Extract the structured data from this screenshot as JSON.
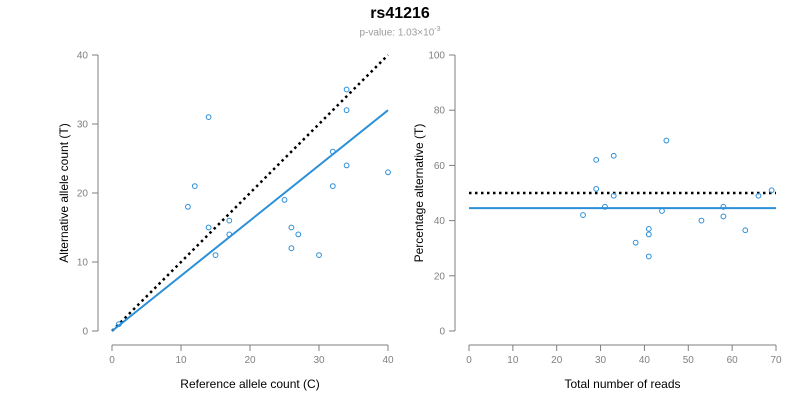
{
  "title": "rs41216",
  "subtitle": {
    "prefix": "p-value: 1.03×10",
    "exponent": "-3"
  },
  "colors": {
    "points": "#2b8fd8",
    "fit_line": "#2b8fd8",
    "reference_line": "#000000",
    "axis": "#7f7f7f"
  },
  "chart_data": [
    {
      "type": "scatter",
      "xlabel": "Reference allele count (C)",
      "ylabel": "Alternative allele count (T)",
      "xlim": [
        0,
        40
      ],
      "ylim": [
        0,
        40
      ],
      "xticks": [
        0,
        10,
        20,
        30,
        40
      ],
      "yticks": [
        0,
        10,
        20,
        30,
        40
      ],
      "grid": false,
      "points": [
        {
          "x": 1,
          "y": 1
        },
        {
          "x": 11,
          "y": 18
        },
        {
          "x": 12,
          "y": 21
        },
        {
          "x": 14,
          "y": 31
        },
        {
          "x": 14,
          "y": 15
        },
        {
          "x": 15,
          "y": 11
        },
        {
          "x": 17,
          "y": 16
        },
        {
          "x": 17,
          "y": 14
        },
        {
          "x": 25,
          "y": 19
        },
        {
          "x": 26,
          "y": 15
        },
        {
          "x": 26,
          "y": 12
        },
        {
          "x": 27,
          "y": 14
        },
        {
          "x": 30,
          "y": 11
        },
        {
          "x": 32,
          "y": 21
        },
        {
          "x": 32,
          "y": 26
        },
        {
          "x": 34,
          "y": 35
        },
        {
          "x": 34,
          "y": 32
        },
        {
          "x": 34,
          "y": 24
        },
        {
          "x": 40,
          "y": 23
        }
      ],
      "fit_line": {
        "x": [
          0,
          40
        ],
        "y": [
          0,
          32
        ],
        "style": "solid"
      },
      "reference_line": {
        "x": [
          0,
          40
        ],
        "y": [
          0,
          40
        ],
        "style": "dotted"
      }
    },
    {
      "type": "scatter",
      "xlabel": "Total number of reads",
      "ylabel": "Percentage alternative (T)",
      "xlim": [
        0,
        70
      ],
      "ylim": [
        0,
        100
      ],
      "xticks": [
        0,
        10,
        20,
        30,
        40,
        50,
        60,
        70
      ],
      "yticks": [
        0,
        20,
        40,
        60,
        80,
        100
      ],
      "grid": false,
      "points": [
        {
          "x": 26,
          "y": 42
        },
        {
          "x": 29,
          "y": 62
        },
        {
          "x": 29,
          "y": 51.5
        },
        {
          "x": 31,
          "y": 45
        },
        {
          "x": 33,
          "y": 63.5
        },
        {
          "x": 33,
          "y": 49
        },
        {
          "x": 38,
          "y": 32
        },
        {
          "x": 41,
          "y": 37
        },
        {
          "x": 41,
          "y": 35
        },
        {
          "x": 41,
          "y": 27
        },
        {
          "x": 44,
          "y": 43.5
        },
        {
          "x": 45,
          "y": 69
        },
        {
          "x": 53,
          "y": 40
        },
        {
          "x": 58,
          "y": 45
        },
        {
          "x": 58,
          "y": 41.5
        },
        {
          "x": 63,
          "y": 36.5
        },
        {
          "x": 66,
          "y": 49
        },
        {
          "x": 69,
          "y": 51
        }
      ],
      "fit_line": {
        "x": [
          0,
          70
        ],
        "y": [
          44.5,
          44.5
        ],
        "style": "solid"
      },
      "reference_line": {
        "x": [
          0,
          70
        ],
        "y": [
          50,
          50
        ],
        "style": "dotted"
      }
    }
  ]
}
